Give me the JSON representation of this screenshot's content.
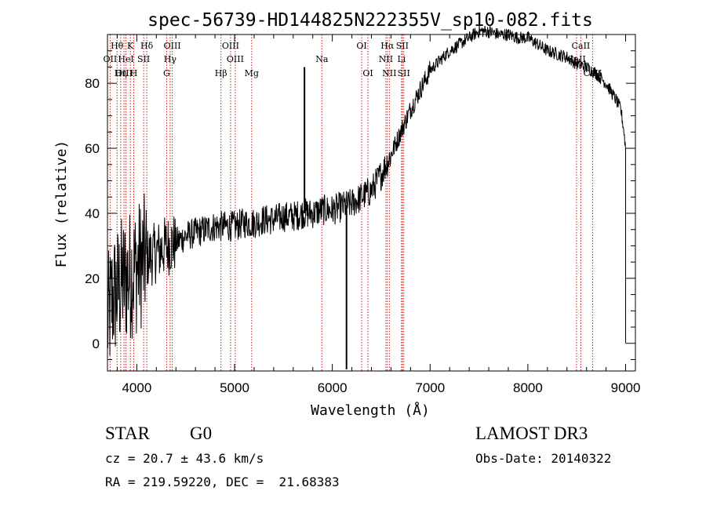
{
  "chart_data": {
    "type": "line",
    "title": "spec-56739-HD144825N222355V_sp10-082.fits",
    "xlabel": "Wavelength (Å)",
    "ylabel": "Flux (relative)",
    "xlim": [
      3700,
      9100
    ],
    "ylim": [
      -8.5,
      95
    ],
    "xticks": [
      4000,
      5000,
      6000,
      7000,
      8000,
      9000
    ],
    "xtick_labels": [
      "4000",
      "5000",
      "6000",
      "7000",
      "8000",
      "9000"
    ],
    "yticks": [
      0,
      20,
      40,
      60,
      80
    ],
    "ytick_labels": [
      "0",
      "20",
      "40",
      "60",
      "80"
    ],
    "grid": false,
    "series": [
      {
        "name": "spectrum",
        "x": [
          3700,
          3750,
          3800,
          3850,
          3900,
          3950,
          4000,
          4050,
          4100,
          4150,
          4200,
          4250,
          4300,
          4400,
          4500,
          4600,
          4700,
          4800,
          4900,
          5000,
          5100,
          5200,
          5300,
          5400,
          5500,
          5600,
          5700,
          5800,
          5900,
          6000,
          6100,
          6200,
          6300,
          6400,
          6500,
          6600,
          6700,
          6800,
          6900,
          7000,
          7100,
          7200,
          7300,
          7400,
          7500,
          7600,
          7700,
          7800,
          7900,
          8000,
          8100,
          8200,
          8300,
          8400,
          8500,
          8600,
          8700,
          8800,
          8900,
          8950,
          8980,
          9000
        ],
        "y": [
          6,
          14,
          16,
          19,
          20,
          22,
          23,
          25,
          26,
          27,
          28,
          29,
          30,
          31,
          33,
          34,
          35,
          36,
          36,
          36,
          37,
          37,
          38,
          38,
          39,
          39,
          40,
          40,
          41,
          41,
          42,
          43,
          45,
          47,
          52,
          58,
          65,
          72,
          78,
          84,
          87,
          90,
          92,
          94,
          96,
          96,
          95,
          95,
          94,
          94,
          92,
          90,
          89,
          88,
          86,
          85,
          83,
          80,
          75,
          72,
          66,
          60
        ]
      }
    ],
    "spikes": [
      {
        "x": 5715,
        "y": 85
      },
      {
        "x": 6145,
        "y": -8
      }
    ],
    "lines": [
      {
        "name": "Hθ",
        "x": 3798,
        "row": 0
      },
      {
        "name": "OII",
        "x": 3727,
        "row": 1
      },
      {
        "name": "OIII",
        "x": 3869,
        "row": 2
      },
      {
        "name": "K",
        "x": 3934,
        "row": 0
      },
      {
        "name": "HeI",
        "x": 3889,
        "row": 1
      },
      {
        "name": "Hη",
        "x": 3835,
        "row": 2
      },
      {
        "name": "Hδ",
        "x": 4102,
        "row": 0
      },
      {
        "name": "SII",
        "x": 4070,
        "row": 1
      },
      {
        "name": "H",
        "x": 3969,
        "row": 2
      },
      {
        "name": "OIII",
        "x": 4363,
        "row": 0
      },
      {
        "name": "Hγ",
        "x": 4341,
        "row": 1
      },
      {
        "name": "G",
        "x": 4305,
        "row": 2
      },
      {
        "name": "OIII",
        "x": 4959,
        "row": 0
      },
      {
        "name": "OIII",
        "x": 5007,
        "row": 1
      },
      {
        "name": "Hβ",
        "x": 4861,
        "row": 2
      },
      {
        "name": "Mg",
        "x": 5175,
        "row": 2
      },
      {
        "name": "Na",
        "x": 5893,
        "row": 1
      },
      {
        "name": "OI",
        "x": 6300,
        "row": 0
      },
      {
        "name": "OI",
        "x": 6364,
        "row": 2
      },
      {
        "name": "Hα",
        "x": 6563,
        "row": 0
      },
      {
        "name": "NII",
        "x": 6548,
        "row": 1
      },
      {
        "name": "NII",
        "x": 6583,
        "row": 2
      },
      {
        "name": "SII",
        "x": 6716,
        "row": 0
      },
      {
        "name": "Li",
        "x": 6708,
        "row": 1
      },
      {
        "name": "SII",
        "x": 6731,
        "row": 2
      },
      {
        "name": "CaII",
        "x": 8542,
        "row": 0
      },
      {
        "name": "CaII",
        "x": 8498,
        "row": 1
      },
      {
        "name": "CaII",
        "x": 8662,
        "row": 2
      }
    ]
  },
  "info": {
    "obj_class": "STAR",
    "subclass": "G0",
    "survey": "LAMOST DR3",
    "cz": "cz = 20.7 ± 43.6 km/s",
    "obs_date": "Obs-Date: 20140322",
    "coords": "RA = 219.59220, DEC =  21.68383"
  }
}
